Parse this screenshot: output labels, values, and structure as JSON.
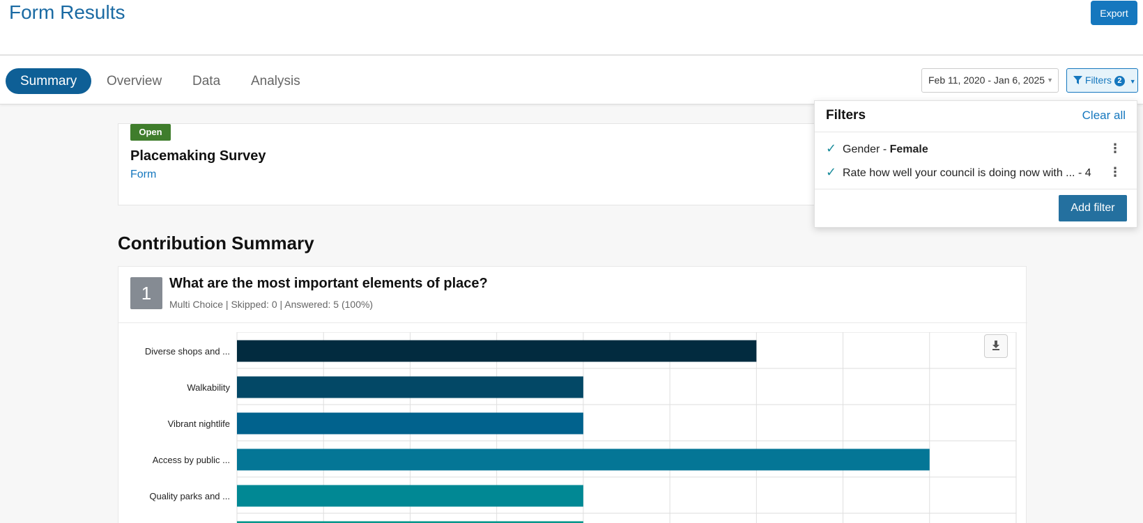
{
  "header": {
    "title": "Form Results",
    "export_label": "Export"
  },
  "tabs": [
    {
      "label": "Summary",
      "active": true
    },
    {
      "label": "Overview",
      "active": false
    },
    {
      "label": "Data",
      "active": false
    },
    {
      "label": "Analysis",
      "active": false
    }
  ],
  "date_range": {
    "value": "Feb 11, 2020 - Jan 6, 2025"
  },
  "filters_button": {
    "label": "Filters",
    "count": "2",
    "icon": "funnel-icon"
  },
  "filter_panel": {
    "title": "Filters",
    "clear_label": "Clear all",
    "items": [
      {
        "label": "Gender - ",
        "value": "Female"
      },
      {
        "label": "Rate how well your council is doing now with ... ",
        "value": "- 4"
      }
    ],
    "add_label": "Add filter"
  },
  "survey": {
    "status": "Open",
    "title": "Placemaking Survey",
    "type": "Form"
  },
  "section_title": "Contribution Summary",
  "question": {
    "number": "1",
    "title": "What are the most important elements of place?",
    "meta": "Multi Choice | Skipped: 0 | Answered: 5 (100%)"
  },
  "colors": {
    "primary": "#1577be",
    "open": "#3f7d2c"
  },
  "chart_data": {
    "type": "bar",
    "orientation": "horizontal",
    "categories": [
      "Diverse shops and ...",
      "Walkability",
      "Vibrant nightlife",
      "Access by public ...",
      "Quality parks and ...",
      ""
    ],
    "values": [
      3,
      2,
      2,
      4,
      2,
      2
    ],
    "colors": [
      "#022b3f",
      "#034866",
      "#01628d",
      "#047696",
      "#018894",
      "#02958a"
    ],
    "xlim": [
      0,
      4.5
    ],
    "grid": true
  }
}
